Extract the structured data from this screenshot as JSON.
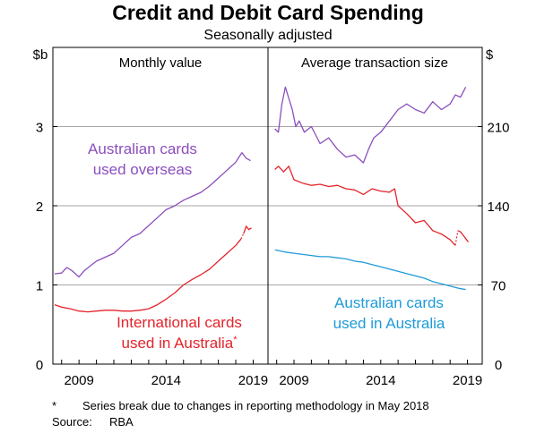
{
  "title": "Credit and Debit Card Spending",
  "subtitle": "Seasonally adjusted",
  "footnote": {
    "marker": "*",
    "text": "Series break due to changes in reporting methodology in May 2018"
  },
  "source": {
    "label": "Source:",
    "text": "RBA"
  },
  "chart_data": [
    {
      "type": "line",
      "title": "Monthly value",
      "ylabel": "$b",
      "ylim": [
        0,
        4
      ],
      "yticks": [
        "0",
        "1",
        "2",
        "3"
      ],
      "xlim": [
        2007.5,
        2019.85
      ],
      "xticks": [
        "2009",
        "2014",
        "2019"
      ],
      "grid": true,
      "series": [
        {
          "name": "Australian cards used overseas",
          "label_lines": [
            "Australian cards",
            "used overseas"
          ],
          "color": "#8b4fbd",
          "x": [
            2007.6,
            2008.0,
            2008.3,
            2008.6,
            2009.0,
            2009.3,
            2009.7,
            2010.0,
            2010.5,
            2011.0,
            2011.5,
            2012.0,
            2012.5,
            2013.0,
            2013.5,
            2014.0,
            2014.5,
            2015.0,
            2015.5,
            2016.0,
            2016.5,
            2017.0,
            2017.5,
            2018.0,
            2018.2,
            2018.35,
            2018.6,
            2018.85
          ],
          "values": [
            1.14,
            1.15,
            1.22,
            1.18,
            1.1,
            1.18,
            1.25,
            1.3,
            1.35,
            1.4,
            1.5,
            1.6,
            1.65,
            1.75,
            1.85,
            1.95,
            2.0,
            2.07,
            2.12,
            2.17,
            2.25,
            2.35,
            2.45,
            2.55,
            2.62,
            2.67,
            2.6,
            2.57
          ]
        },
        {
          "name": "International cards used in Australia",
          "label_lines": [
            "International cards",
            "used in Australia"
          ],
          "label_suffix": "*",
          "color": "#e3242b",
          "x": [
            2007.6,
            2008.0,
            2008.5,
            2009.0,
            2009.5,
            2010.0,
            2010.5,
            2011.0,
            2011.5,
            2012.0,
            2012.5,
            2013.0,
            2013.5,
            2014.0,
            2014.5,
            2015.0,
            2015.5,
            2016.0,
            2016.5,
            2017.0,
            2017.5,
            2018.0,
            2018.3
          ],
          "values": [
            0.75,
            0.72,
            0.7,
            0.67,
            0.66,
            0.67,
            0.68,
            0.68,
            0.67,
            0.67,
            0.68,
            0.7,
            0.75,
            0.82,
            0.9,
            1.0,
            1.07,
            1.13,
            1.2,
            1.3,
            1.4,
            1.5,
            1.58
          ],
          "break_x": [
            2018.45,
            2018.6,
            2018.75,
            2018.9
          ],
          "break_values": [
            1.65,
            1.74,
            1.7,
            1.72
          ]
        }
      ]
    },
    {
      "type": "line",
      "title": "Average transaction size",
      "ylabel": "$",
      "ylim": [
        0,
        280
      ],
      "yticks": [
        "0",
        "70",
        "140",
        "210"
      ],
      "xlim": [
        2007.5,
        2019.85
      ],
      "xticks": [
        "2009",
        "2014",
        "2019"
      ],
      "grid": true,
      "series": [
        {
          "name": "Australian cards used overseas",
          "color": "#8b4fbd",
          "x": [
            2007.9,
            2008.1,
            2008.3,
            2008.5,
            2008.7,
            2008.9,
            2009.1,
            2009.3,
            2009.6,
            2010.0,
            2010.5,
            2011.0,
            2011.5,
            2012.0,
            2012.5,
            2013.0,
            2013.3,
            2013.6,
            2014.0,
            2014.5,
            2015.0,
            2015.5,
            2016.0,
            2016.5,
            2017.0,
            2017.5,
            2018.0,
            2018.3,
            2018.6,
            2018.9
          ],
          "values": [
            208,
            205,
            230,
            245,
            235,
            225,
            210,
            215,
            205,
            210,
            195,
            200,
            190,
            183,
            185,
            178,
            190,
            200,
            205,
            215,
            225,
            230,
            225,
            222,
            232,
            225,
            230,
            238,
            236,
            245
          ]
        },
        {
          "name": "International cards used in Australia",
          "color": "#e3242b",
          "x": [
            2007.9,
            2008.1,
            2008.4,
            2008.7,
            2009.0,
            2009.5,
            2010.0,
            2010.5,
            2011.0,
            2011.5,
            2012.0,
            2012.5,
            2013.0,
            2013.5,
            2014.0,
            2014.5,
            2014.8,
            2015.0,
            2015.5,
            2016.0,
            2016.5,
            2017.0,
            2017.5,
            2018.0,
            2018.3
          ],
          "values": [
            172,
            175,
            170,
            175,
            163,
            160,
            158,
            159,
            157,
            158,
            155,
            154,
            150,
            155,
            153,
            152,
            155,
            140,
            133,
            125,
            127,
            118,
            115,
            110,
            105
          ],
          "break_x": [
            2018.45,
            2018.6,
            2018.75,
            2018.9,
            2019.05
          ],
          "break_values": [
            118,
            117,
            114,
            111,
            108
          ]
        },
        {
          "name": "Australian cards used in Australia",
          "label_lines": [
            "Australian cards",
            "used in Australia"
          ],
          "color": "#1f9bd7",
          "x": [
            2007.9,
            2008.5,
            2009.0,
            2009.5,
            2010.0,
            2010.5,
            2011.0,
            2011.5,
            2012.0,
            2012.5,
            2013.0,
            2013.5,
            2014.0,
            2014.5,
            2015.0,
            2015.5,
            2016.0,
            2016.5,
            2017.0,
            2017.5,
            2018.0,
            2018.5,
            2018.9
          ],
          "values": [
            101,
            99,
            98,
            97,
            96,
            95,
            95,
            94,
            93,
            91,
            90,
            88,
            86,
            84,
            82,
            80,
            78,
            76,
            73,
            71,
            69,
            67,
            66
          ]
        }
      ]
    }
  ]
}
